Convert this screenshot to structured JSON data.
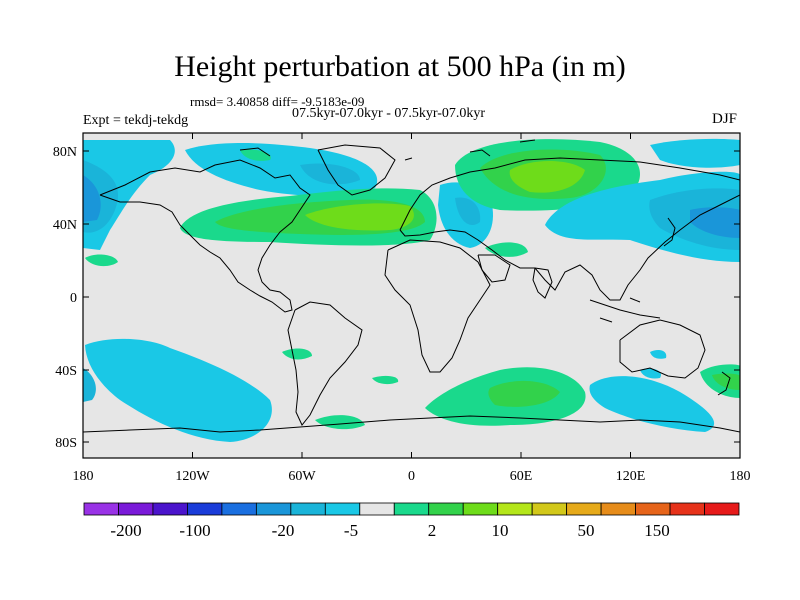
{
  "title": "Height perturbation at 500 hPa (in m)",
  "stats": "rmsd= 3.40858 diff= -9.5183e-09",
  "expt": "Expt = tekdj-tekdg",
  "period": "07.5kyr-07.0kyr - 07.5kyr-07.0kyr",
  "season": "DJF",
  "map": {
    "x_ticks": [
      "180",
      "120W",
      "60W",
      "0",
      "60E",
      "120E",
      "180"
    ],
    "y_ticks": [
      "80N",
      "40N",
      "0",
      "40S",
      "80S"
    ],
    "background_color": "#e6e6e6"
  },
  "colorbar": {
    "colors": [
      "#9932e6",
      "#7a1ad9",
      "#4b14cc",
      "#1a3cd9",
      "#1a6fe0",
      "#1a96d9",
      "#1ab4d9",
      "#1ac8e6",
      "#e6e6e6",
      "#1ad98c",
      "#32d24b",
      "#6edc1a",
      "#b4e61a",
      "#d2c81a",
      "#e6aa1a",
      "#e68c1a",
      "#e6641a",
      "#e6321a",
      "#e61a1a"
    ],
    "labels": [
      "-200",
      "-100",
      "-20",
      "-5",
      "2",
      "10",
      "50",
      "150"
    ]
  }
}
